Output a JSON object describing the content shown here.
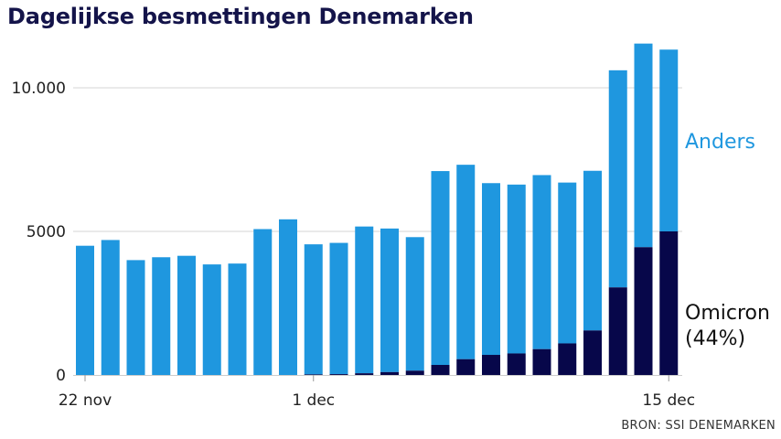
{
  "title": "Dagelijkse besmettingen Denemarken",
  "source": "BRON: SSI DENEMARKEN",
  "colors": {
    "anders": "#1f97df",
    "omicron": "#07074a",
    "title": "#14144a",
    "grid": "#d6d6d6",
    "axis": "#cccccc"
  },
  "chart_data": {
    "type": "bar",
    "stacked": true,
    "title": "Dagelijkse besmettingen Denemarken",
    "xlabel": "",
    "ylabel": "",
    "ylim": [
      0,
      11500
    ],
    "grid": true,
    "y_ticks": [
      {
        "value": 0,
        "label": "0"
      },
      {
        "value": 5000,
        "label": "5000"
      },
      {
        "value": 10000,
        "label": "10.000"
      }
    ],
    "x_ticks": [
      {
        "index": 0,
        "label": "22 nov"
      },
      {
        "index": 9,
        "label": "1 dec"
      },
      {
        "index": 23,
        "label": "15 dec"
      }
    ],
    "categories": [
      "22 nov",
      "23 nov",
      "24 nov",
      "25 nov",
      "26 nov",
      "27 nov",
      "28 nov",
      "29 nov",
      "30 nov",
      "1 dec",
      "2 dec",
      "3 dec",
      "4 dec",
      "5 dec",
      "6 dec",
      "7 dec",
      "8 dec",
      "9 dec",
      "10 dec",
      "11 dec",
      "12 dec",
      "13 dec",
      "14 dec",
      "15 dec"
    ],
    "series": [
      {
        "name": "Omicron",
        "label": "Omicron",
        "sublabel": "(44%)",
        "values": [
          0,
          0,
          0,
          0,
          0,
          0,
          0,
          0,
          0,
          20,
          30,
          60,
          100,
          150,
          350,
          550,
          700,
          750,
          900,
          1100,
          1550,
          3050,
          4450,
          5000
        ]
      },
      {
        "name": "Anders",
        "label": "Anders",
        "values": [
          4500,
          4700,
          4000,
          4100,
          4150,
          3850,
          3880,
          5080,
          5420,
          4530,
          4570,
          5110,
          5000,
          4650,
          6750,
          6770,
          5980,
          5880,
          6060,
          5600,
          5560,
          7560,
          7090,
          6330
        ]
      }
    ]
  }
}
